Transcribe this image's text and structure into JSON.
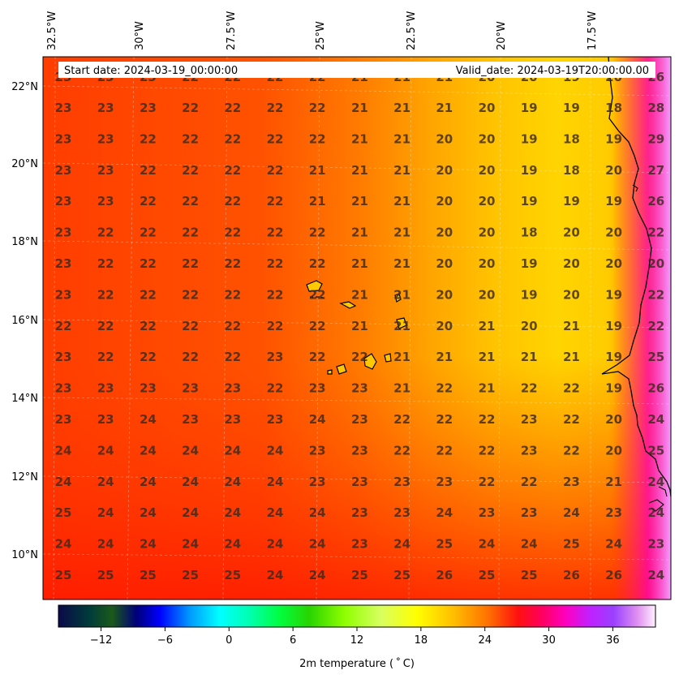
{
  "header": {
    "start_date": "Start date: 2024-03-19_00:00:00",
    "valid_date": "Valid_date: 2024-03-19T20:00:00.00"
  },
  "axes": {
    "lon_labels": [
      "32.5°W",
      "30°W",
      "27.5°W",
      "25°W",
      "22.5°W",
      "20°W",
      "17.5°W"
    ],
    "lat_labels": [
      "22°N",
      "20°N",
      "18°N",
      "16°N",
      "14°N",
      "12°N",
      "10°N"
    ]
  },
  "colorbar": {
    "label": "2m temperature ($^\\circ$C)",
    "label_display": "2m temperature ( ˚ C)",
    "ticks": [
      "−12",
      "−6",
      "0",
      "6",
      "12",
      "18",
      "24",
      "30",
      "36"
    ],
    "tick_values": [
      -12,
      -6,
      0,
      6,
      12,
      18,
      24,
      30,
      36
    ],
    "range": [
      -16,
      40
    ]
  },
  "temperature_grid": {
    "rows": [
      [
        "23",
        "23",
        "23",
        "22",
        "22",
        "22",
        "22",
        "21",
        "21",
        "21",
        "20",
        "19",
        "19",
        "18",
        "28"
      ],
      [
        "23",
        "23",
        "22",
        "22",
        "22",
        "22",
        "22",
        "21",
        "21",
        "20",
        "20",
        "19",
        "18",
        "19",
        "29"
      ],
      [
        "23",
        "23",
        "22",
        "22",
        "22",
        "22",
        "21",
        "21",
        "21",
        "20",
        "20",
        "19",
        "18",
        "20",
        "27"
      ],
      [
        "23",
        "23",
        "22",
        "22",
        "22",
        "22",
        "21",
        "21",
        "21",
        "20",
        "20",
        "19",
        "19",
        "19",
        "26"
      ],
      [
        "23",
        "22",
        "22",
        "22",
        "22",
        "22",
        "22",
        "21",
        "21",
        "20",
        "20",
        "18",
        "20",
        "20",
        "22"
      ],
      [
        "23",
        "22",
        "22",
        "22",
        "22",
        "22",
        "22",
        "21",
        "21",
        "20",
        "20",
        "19",
        "20",
        "20",
        "20"
      ],
      [
        "23",
        "22",
        "22",
        "22",
        "22",
        "22",
        "22",
        "21",
        "21",
        "20",
        "20",
        "19",
        "20",
        "19",
        "22"
      ],
      [
        "22",
        "22",
        "22",
        "22",
        "22",
        "22",
        "22",
        "21",
        "21",
        "20",
        "21",
        "20",
        "21",
        "19",
        "22"
      ],
      [
        "23",
        "22",
        "22",
        "22",
        "22",
        "23",
        "22",
        "22",
        "21",
        "21",
        "21",
        "21",
        "21",
        "19",
        "25"
      ],
      [
        "23",
        "23",
        "23",
        "23",
        "23",
        "22",
        "23",
        "23",
        "21",
        "22",
        "21",
        "22",
        "22",
        "19",
        "26"
      ],
      [
        "23",
        "23",
        "24",
        "23",
        "23",
        "23",
        "24",
        "23",
        "22",
        "22",
        "22",
        "23",
        "22",
        "20",
        "24"
      ],
      [
        "24",
        "24",
        "24",
        "24",
        "24",
        "24",
        "23",
        "23",
        "22",
        "22",
        "22",
        "23",
        "22",
        "20",
        "25"
      ],
      [
        "24",
        "24",
        "24",
        "24",
        "24",
        "24",
        "23",
        "23",
        "23",
        "23",
        "22",
        "22",
        "23",
        "21",
        "24"
      ],
      [
        "25",
        "24",
        "24",
        "24",
        "24",
        "24",
        "24",
        "23",
        "23",
        "24",
        "23",
        "23",
        "24",
        "23",
        "24"
      ],
      [
        "24",
        "24",
        "24",
        "24",
        "24",
        "24",
        "24",
        "23",
        "24",
        "25",
        "24",
        "24",
        "25",
        "24",
        "23"
      ],
      [
        "25",
        "25",
        "25",
        "25",
        "25",
        "24",
        "24",
        "25",
        "25",
        "26",
        "25",
        "25",
        "26",
        "26",
        "24"
      ]
    ],
    "partial_top_row": [
      "23",
      "23",
      "23",
      "22",
      "22",
      "22",
      "22",
      "21",
      "21",
      "21",
      "20",
      "20",
      "19",
      "20",
      "26"
    ]
  }
}
